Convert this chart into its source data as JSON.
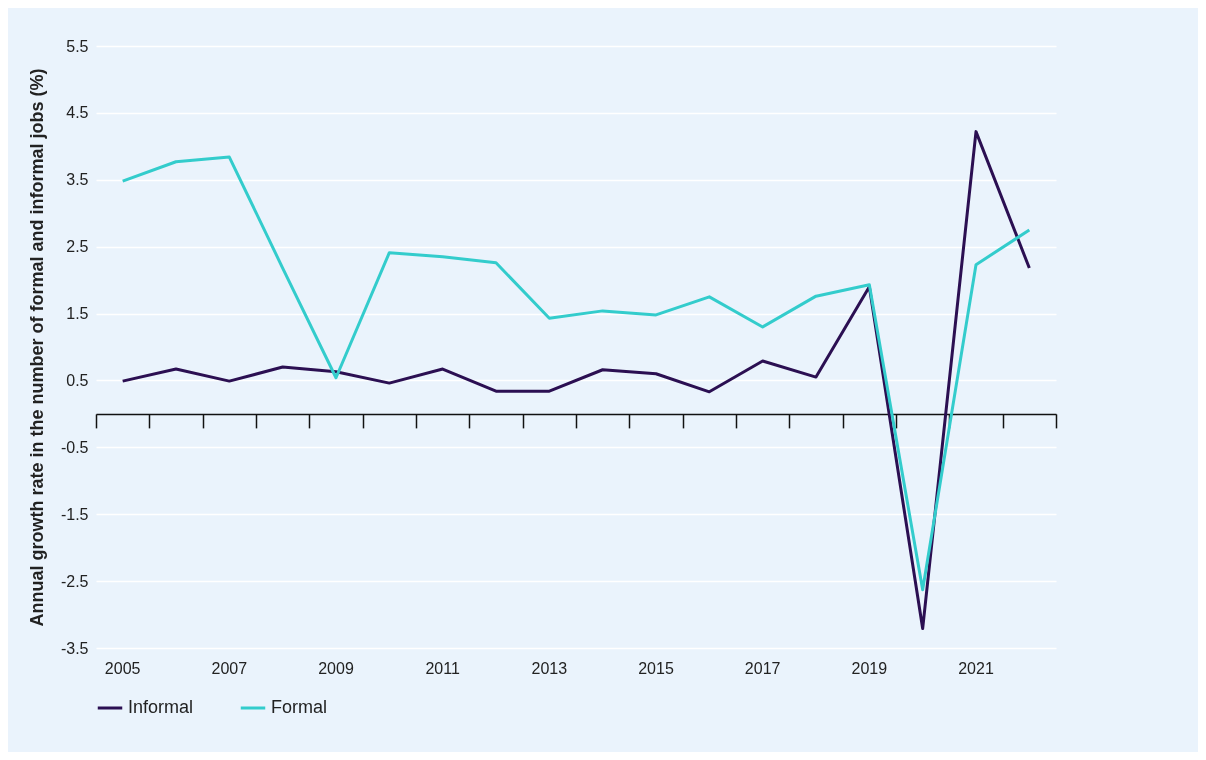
{
  "chart_data": {
    "type": "line",
    "ylabel": "Annual growth rate in the number of formal and informal jobs (%)",
    "categories": [
      "2005",
      null,
      "2007",
      null,
      "2009",
      null,
      "2011",
      null,
      "2013",
      null,
      "2015",
      null,
      "2017",
      null,
      "2019",
      null,
      "2021",
      null
    ],
    "series": [
      {
        "name": "Informal",
        "color": "#2b0f52",
        "values": [
          0.49,
          0.67,
          0.49,
          0.7,
          0.63,
          0.46,
          0.67,
          0.34,
          0.34,
          0.66,
          0.6,
          0.33,
          0.79,
          0.55,
          1.9,
          -3.21,
          4.22,
          2.18
        ]
      },
      {
        "name": "Formal",
        "color": "#33cccc",
        "values": [
          3.48,
          3.77,
          3.84,
          2.18,
          0.54,
          2.41,
          2.35,
          2.26,
          1.43,
          1.54,
          1.48,
          1.75,
          1.3,
          1.76,
          1.93,
          -2.63,
          2.23,
          2.75
        ]
      }
    ],
    "ylim": [
      -3.5,
      5.5
    ],
    "yticks": [
      -3.5,
      -2.5,
      -1.5,
      -0.5,
      0.5,
      1.5,
      2.5,
      3.5,
      4.5,
      5.5
    ],
    "grid": "y",
    "legend": "bottom",
    "marker": "none",
    "line_style": "solid"
  }
}
